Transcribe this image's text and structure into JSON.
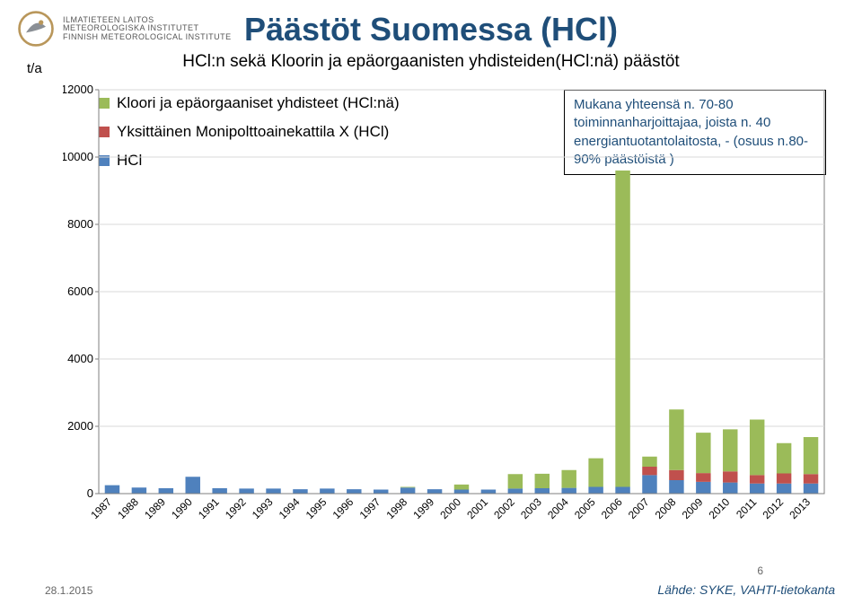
{
  "logo": {
    "line1": "ILMATIETEEN LAITOS",
    "line2": "METEOROLOGISKA INSTITUTET",
    "line3": "FINNISH METEOROLOGICAL INSTITUTE",
    "ring_color": "#b9975b",
    "swirl_color": "#8a8f95"
  },
  "title": "Päästöt Suomessa (HCl)",
  "title_color": "#1f4e79",
  "title_fontsize": 36,
  "subtitle": "HCl:n sekä Kloorin ja epäorgaanisten yhdisteiden(HCl:nä) päästöt",
  "subtitle_fontsize": 19,
  "y_label": "t/a",
  "legend": {
    "items": [
      {
        "label": "Kloori ja epäorgaaniset yhdisteet (HCl:nä)",
        "color": "#9bbb59"
      },
      {
        "label": "Yksittäinen Monipolttoainekattila X (HCl)",
        "color": "#c0504d"
      },
      {
        "label": "HCl",
        "color": "#4f81bd"
      }
    ]
  },
  "annotation": {
    "text": "Mukana yhteensä n. 70-80 toiminnanharjoittajaa, joista n. 40 energiantuotantolaitosta, - (osuus n.80-90% päästöistä )",
    "color": "#1f4e79",
    "border_color": "#000000"
  },
  "chart": {
    "type": "stacked-bar",
    "background_color": "#ffffff",
    "plot_border_color": "#7f7f7f",
    "grid_color": "#d9d9d9",
    "axis_fontsize": 13,
    "xlabel_fontsize": 12,
    "x_label_rotation": -45,
    "bar_width": 0.55,
    "ylim": [
      0,
      12000
    ],
    "ytick_step": 2000,
    "yticks": [
      0,
      2000,
      4000,
      6000,
      8000,
      10000,
      12000
    ],
    "series_order": [
      "hcl",
      "boilerX",
      "chlorine"
    ],
    "series_colors": {
      "chlorine": "#9bbb59",
      "boilerX": "#c0504d",
      "hcl": "#4f81bd"
    },
    "categories": [
      "1987",
      "1988",
      "1989",
      "1990",
      "1991",
      "1992",
      "1993",
      "1994",
      "1995",
      "1996",
      "1997",
      "1998",
      "1999",
      "2000",
      "2001",
      "2002",
      "2003",
      "2004",
      "2005",
      "2006",
      "2007",
      "2008",
      "2009",
      "2010",
      "2011",
      "2012",
      "2013"
    ],
    "data": {
      "hcl": [
        250,
        180,
        160,
        500,
        160,
        150,
        150,
        130,
        150,
        130,
        120,
        180,
        130,
        120,
        120,
        150,
        160,
        170,
        200,
        200,
        550,
        400,
        350,
        330,
        300,
        300,
        300
      ],
      "boilerX": [
        0,
        0,
        0,
        0,
        0,
        0,
        0,
        0,
        0,
        0,
        0,
        0,
        0,
        0,
        0,
        0,
        0,
        0,
        0,
        0,
        250,
        300,
        260,
        330,
        250,
        300,
        280
      ],
      "chlorine": [
        0,
        0,
        0,
        0,
        0,
        0,
        0,
        0,
        0,
        0,
        0,
        20,
        0,
        150,
        0,
        430,
        430,
        530,
        850,
        9400,
        300,
        1800,
        1200,
        1250,
        1650,
        900,
        1100
      ]
    }
  },
  "footer": {
    "date": "28.1.2015",
    "number": "6",
    "source": "Lähde: SYKE, VAHTI-tietokanta",
    "source_color": "#1f4e79"
  }
}
